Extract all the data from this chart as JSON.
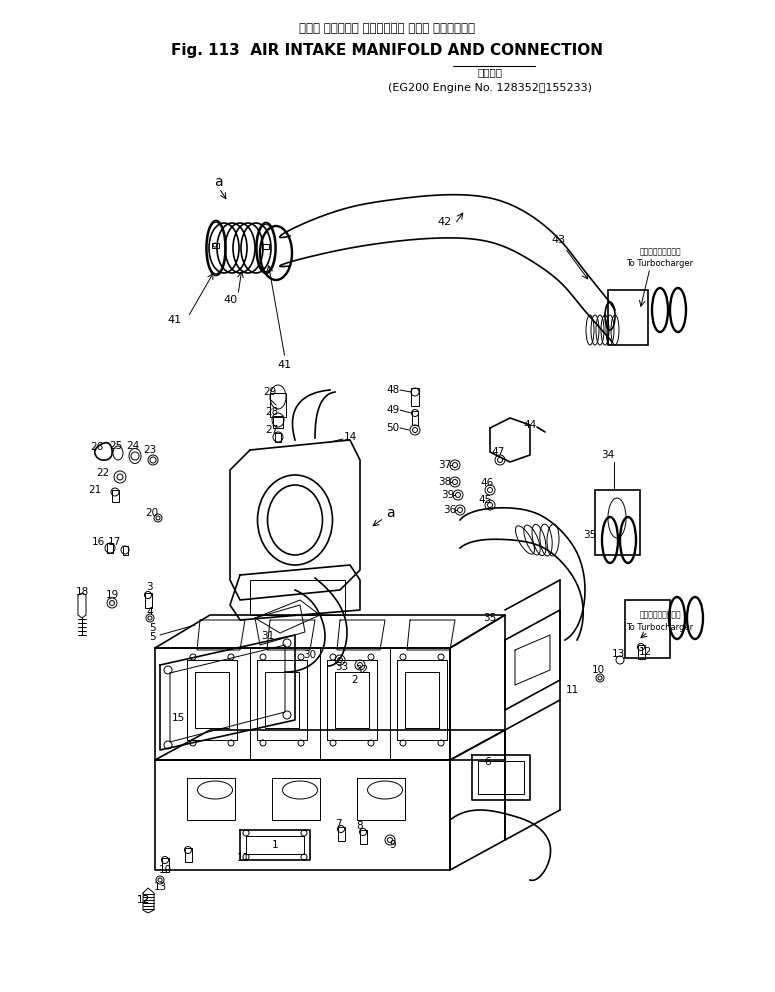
{
  "title_jp": "エアー インテーク マニホールド および コネクション",
  "title_en": "Fig. 113  AIR INTAKE MANIFOLD AND CONNECTION",
  "subtitle_jp": "適用号機",
  "subtitle_en": "EG200 Engine No. 128352〜155233",
  "bg_color": "#ffffff",
  "fig_width": 7.75,
  "fig_height": 9.92,
  "dpi": 100
}
